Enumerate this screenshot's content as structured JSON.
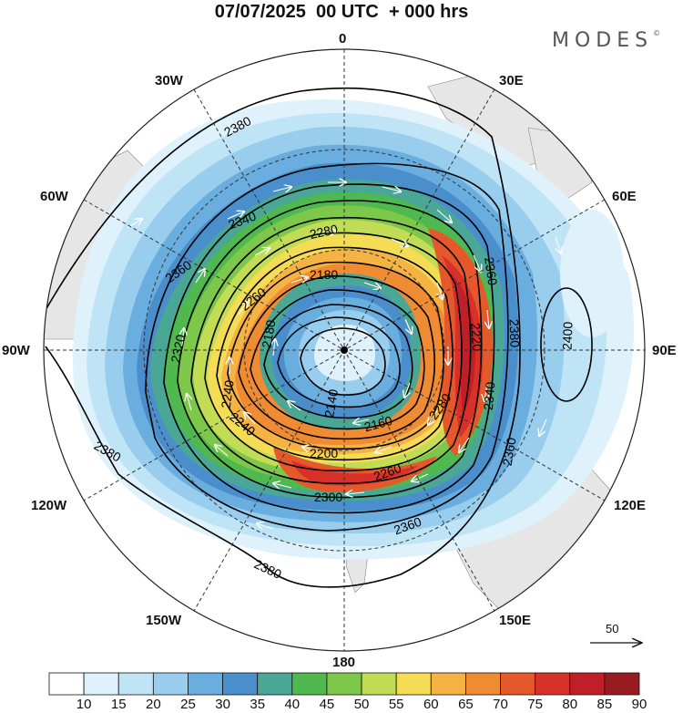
{
  "title": "07/07/2025  00 UTC  + 000 hrs",
  "logo": "MODES",
  "logo_mark": "©",
  "longitude_labels": {
    "n": "0",
    "ne30": "30E",
    "ne60": "60E",
    "e": "90E",
    "se120": "120E",
    "se150": "150E",
    "s": "180",
    "sw150": "150W",
    "sw120": "120W",
    "w": "90W",
    "nw60": "60W",
    "nw30": "30W"
  },
  "contour_labels": [
    "2380",
    "2340",
    "2360",
    "2280",
    "2180",
    "2260",
    "2320",
    "2240",
    "2180",
    "2360",
    "2380",
    "2400",
    "2220",
    "2340",
    "2280",
    "2200",
    "2260",
    "2300",
    "2360",
    "2380",
    "2380",
    "2360",
    "2160",
    "2140",
    "2240"
  ],
  "reference_vector": "50",
  "colorbar": {
    "ticks": [
      "10",
      "15",
      "20",
      "25",
      "30",
      "35",
      "40",
      "45",
      "50",
      "55",
      "60",
      "65",
      "70",
      "75",
      "80",
      "85",
      "90"
    ],
    "colors": [
      "#ffffff",
      "#dff2fb",
      "#bfe4f6",
      "#98cdee",
      "#6aaedf",
      "#4a8fcb",
      "#4aa695",
      "#4fb84f",
      "#7dc84a",
      "#c2dd55",
      "#f5dc55",
      "#f5b344",
      "#ef8b33",
      "#e5582c",
      "#d8312a",
      "#c11f28",
      "#961c22"
    ]
  },
  "colors": {
    "land": "#e6e6e6",
    "contour": "#000000",
    "grid": "#333333"
  }
}
